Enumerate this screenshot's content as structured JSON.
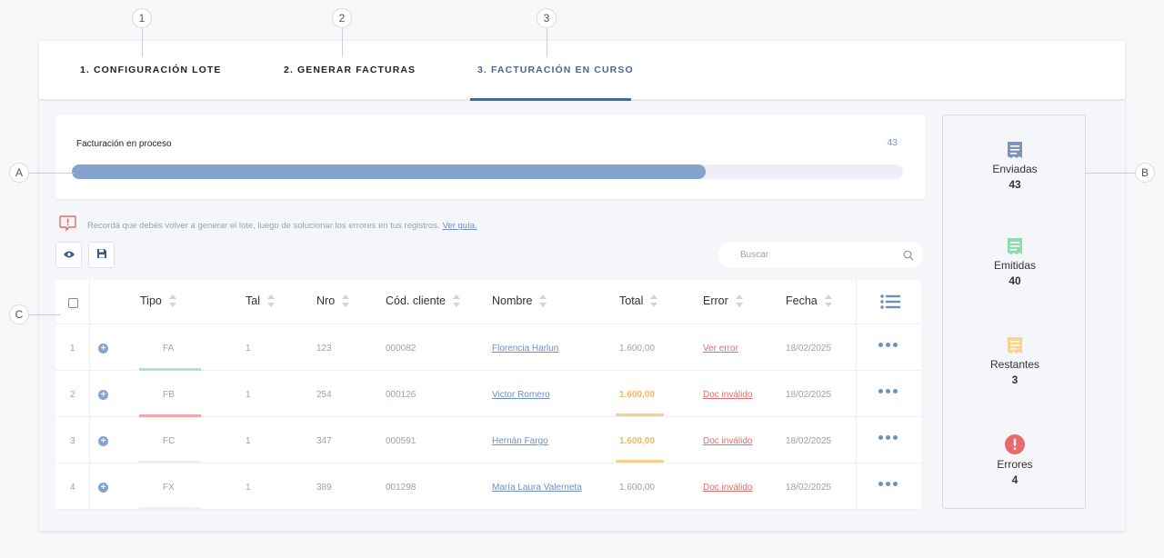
{
  "callouts": {
    "step1": "1",
    "step2": "2",
    "step3": "3",
    "a": "A",
    "b": "B",
    "c": "C"
  },
  "tabs": [
    {
      "label": "1. CONFIGURACIÓN LOTE"
    },
    {
      "label": "2. GENERAR FACTURAS"
    },
    {
      "label": "3. FACTURACIÓN EN CURSO",
      "active": true
    }
  ],
  "progress": {
    "label": "Facturación en proceso",
    "count": "43",
    "fill_fraction": 0.763
  },
  "warning": {
    "text": "Recordá que debés volver a generar el lote, luego de solucionar los errores en tus registros.",
    "link": "Ver guía."
  },
  "toolbar": {
    "view_icon": "eye-icon",
    "save_icon": "floppy-icon"
  },
  "search": {
    "placeholder": "Buscar"
  },
  "table": {
    "headers": [
      "Tipo",
      "Tal",
      "Nro",
      "Cód. cliente",
      "Nombre",
      "Total",
      "Error",
      "Fecha"
    ],
    "rows": [
      {
        "idx": "1",
        "tipo": "FA",
        "tal": "1",
        "nro": "123",
        "cod": "000082",
        "nombre": "Florencia Harlun",
        "total": "1.600,00",
        "error": "Ver error",
        "fecha": "18/02/2025",
        "tipo_color": "#a8e6c4",
        "total_warn": false
      },
      {
        "idx": "2",
        "tipo": "FB",
        "tal": "1",
        "nro": "254",
        "cod": "000126",
        "nombre": "Victor Romero",
        "total": "1.600,00",
        "error": "Doc inválido",
        "fecha": "18/02/2025",
        "tipo_color": "#f4a6a6",
        "total_warn": true
      },
      {
        "idx": "3",
        "tipo": "FC",
        "tal": "1",
        "nro": "347",
        "cod": "000591",
        "nombre": "Hernán Fargo",
        "total": "1.600,00",
        "error": "Doc inválido",
        "fecha": "18/02/2025",
        "tipo_color": "#eceff5",
        "total_warn": true
      },
      {
        "idx": "4",
        "tipo": "FX",
        "tal": "1",
        "nro": "389",
        "cod": "001298",
        "nombre": "María Laura Valerneta",
        "total": "1.600,00",
        "error": "Doc inválido",
        "fecha": "18/02/2025",
        "tipo_color": "#eceff5",
        "total_warn": false
      }
    ]
  },
  "stats": [
    {
      "label": "Enviadas",
      "value": "43",
      "icon": "receipt-icon",
      "color": "#7d95bd"
    },
    {
      "label": "Emitidas",
      "value": "40",
      "icon": "receipt-icon",
      "color": "#8fdcb0"
    },
    {
      "label": "Restantes",
      "value": "3",
      "icon": "receipt-icon",
      "color": "#f8d48f"
    },
    {
      "label": "Errores",
      "value": "4",
      "icon": "alert-circle-icon",
      "color": "#e86a6a"
    }
  ]
}
